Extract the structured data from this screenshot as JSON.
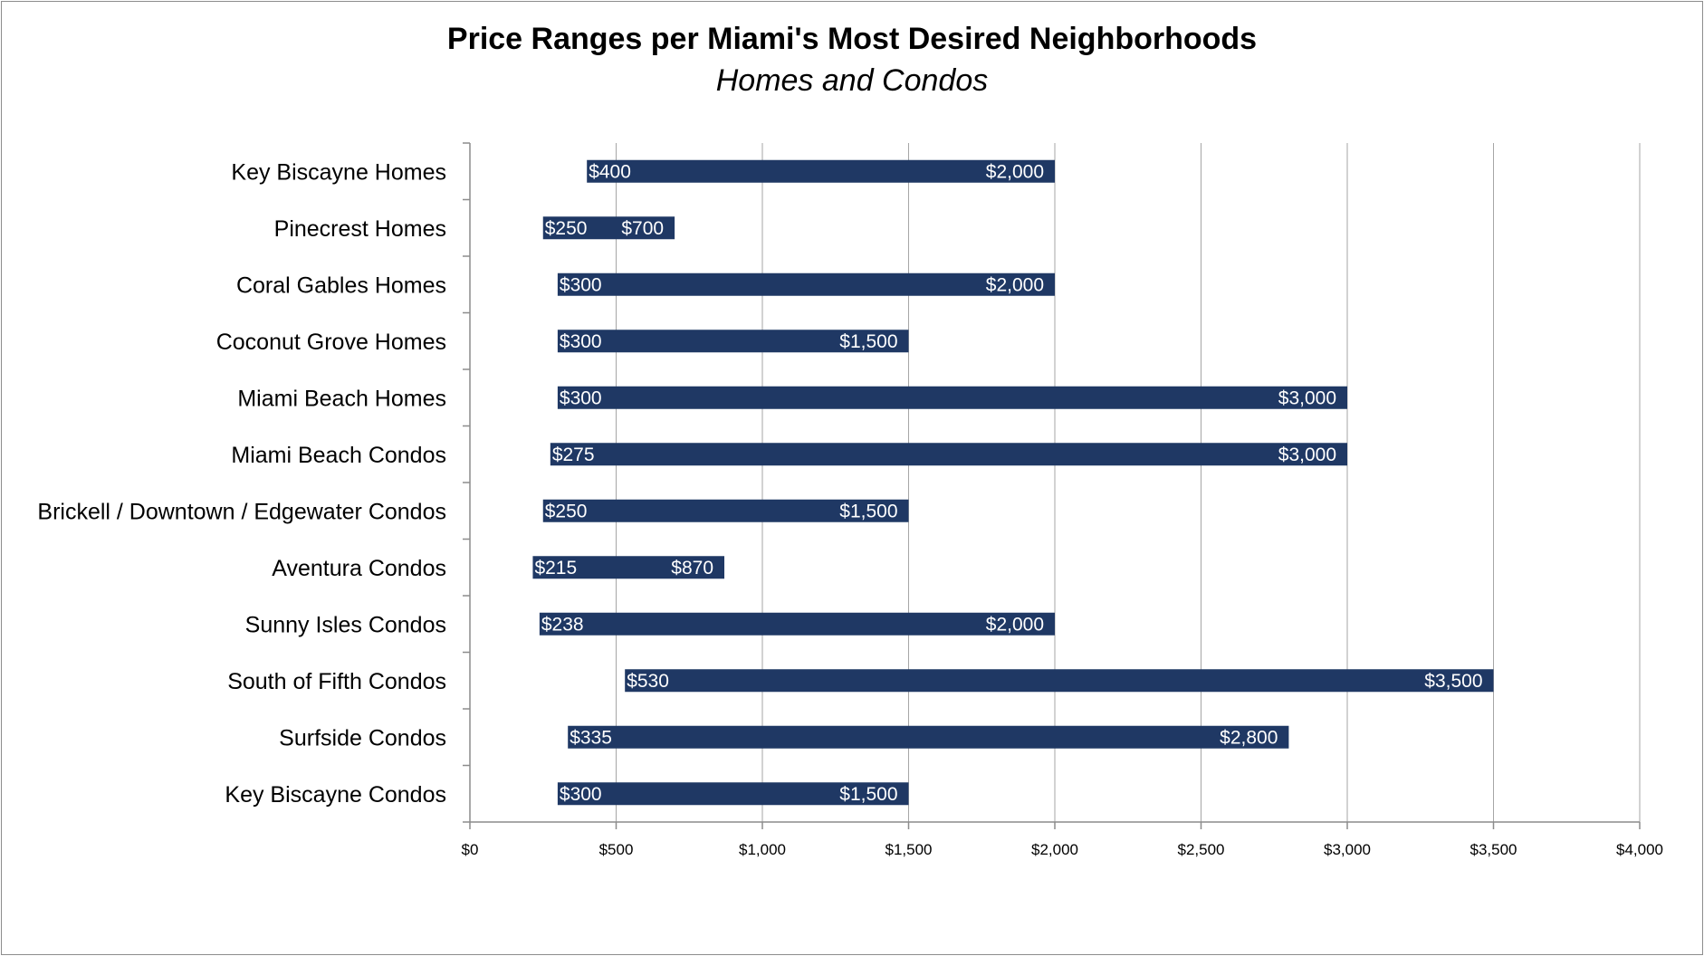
{
  "chart_data": {
    "type": "bar",
    "orientation": "horizontal",
    "subtype": "floating-range",
    "title": "Price Ranges per Miami's Most Desired Neighborhoods",
    "subtitle": "Homes and Condos",
    "xlabel": "",
    "ylabel": "",
    "xlim": [
      0,
      4000
    ],
    "x_ticks": [
      0,
      500,
      1000,
      1500,
      2000,
      2500,
      3000,
      3500,
      4000
    ],
    "x_tick_labels": [
      "$0",
      "$500",
      "$1,000",
      "$1,500",
      "$2,000",
      "$2,500",
      "$3,000",
      "$3,500",
      "$4,000"
    ],
    "grid": "vertical",
    "legend": "none",
    "bar_color": "#1f3864",
    "categories": [
      "Key Biscayne Homes",
      "Pinecrest Homes",
      "Coral Gables Homes",
      "Coconut Grove Homes",
      "Miami Beach Homes",
      "Miami Beach Condos",
      "Brickell / Downtown / Edgewater Condos",
      "Aventura Condos",
      "Sunny Isles Condos",
      "South of Fifth Condos",
      "Surfside Condos",
      "Key Biscayne Condos"
    ],
    "low": [
      400,
      250,
      300,
      300,
      300,
      275,
      250,
      215,
      238,
      530,
      335,
      300
    ],
    "high": [
      2000,
      700,
      2000,
      1500,
      3000,
      3000,
      1500,
      870,
      2000,
      3500,
      2800,
      1500
    ],
    "low_labels": [
      "$400",
      "$250",
      "$300",
      "$300",
      "$300",
      "$275",
      "$250",
      "$215",
      "$238",
      "$530",
      "$335",
      "$300"
    ],
    "high_labels": [
      "$2,000",
      "$700",
      "$2,000",
      "$1,500",
      "$3,000",
      "$3,000",
      "$1,500",
      "$870",
      "$2,000",
      "$3,500",
      "$2,800",
      "$1,500"
    ]
  }
}
